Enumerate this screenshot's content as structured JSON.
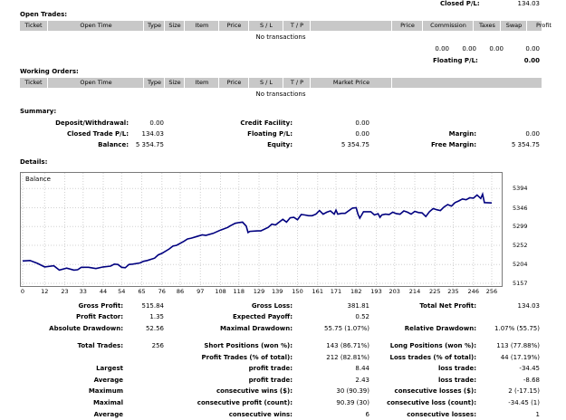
{
  "top": {
    "closed_pl_label": "Closed P/L:",
    "closed_pl_value": "134.03"
  },
  "open_trades": {
    "title": "Open Trades:",
    "columns": [
      "Ticket",
      "Open Time",
      "Type",
      "Size",
      "Item",
      "Price",
      "S / L",
      "T / P",
      "",
      "Price",
      "Commission",
      "Taxes",
      "Swap",
      "Profit"
    ],
    "empty": "No transactions",
    "totals": [
      "0.00",
      "0.00",
      "0.00",
      "0.00"
    ],
    "floating_label": "Floating P/L:",
    "floating_value": "0.00"
  },
  "working_orders": {
    "title": "Working Orders:",
    "columns": [
      "Ticket",
      "Open Time",
      "Type",
      "Size",
      "Item",
      "Price",
      "S / L",
      "T / P",
      "Market Price"
    ],
    "empty": "No transactions"
  },
  "summary": {
    "title": "Summary:",
    "deposit_label": "Deposit/Withdrawal:",
    "deposit_value": "0.00",
    "credit_label": "Credit Facility:",
    "credit_value": "0.00",
    "closed_label": "Closed Trade P/L:",
    "closed_value": "134.03",
    "floating_label": "Floating P/L:",
    "floating_value": "0.00",
    "margin_label": "Margin:",
    "margin_value": "0.00",
    "balance_label": "Balance:",
    "balance_value": "5 354.75",
    "equity_label": "Equity:",
    "equity_value": "5 354.75",
    "free_margin_label": "Free Margin:",
    "free_margin_value": "5 354.75"
  },
  "details": {
    "title": "Details:",
    "stats": [
      [
        "Gross Profit:",
        "515.84",
        "Gross Loss:",
        "381.81",
        "Total Net Profit:",
        "134.03"
      ],
      [
        "Profit Factor:",
        "1.35",
        "Expected Payoff:",
        "0.52",
        "",
        ""
      ],
      [
        "Absolute Drawdown:",
        "52.56",
        "Maximal Drawdown:",
        "55.75 (1.07%)",
        "Relative Drawdown:",
        "1.07% (55.75)"
      ],
      [
        "",
        "",
        "",
        "",
        "",
        ""
      ],
      [
        "Total Trades:",
        "256",
        "Short Positions (won %):",
        "143 (86.71%)",
        "Long Positions (won %):",
        "113 (77.88%)"
      ],
      [
        "",
        "",
        "Profit Trades (% of total):",
        "212 (82.81%)",
        "Loss trades (% of total):",
        "44 (17.19%)"
      ],
      [
        "Largest",
        "",
        "profit trade:",
        "8.44",
        "loss trade:",
        "-34.45"
      ],
      [
        "Average",
        "",
        "profit trade:",
        "2.43",
        "loss trade:",
        "-8.68"
      ],
      [
        "Maximum",
        "",
        "consecutive wins ($):",
        "30 (90.39)",
        "consecutive losses ($):",
        "2 (-17.15)"
      ],
      [
        "Maximal",
        "",
        "consecutive profit (count):",
        "90.39 (30)",
        "consecutive loss (count):",
        "-34.45 (1)"
      ],
      [
        "Average",
        "",
        "consecutive wins:",
        "6",
        "consecutive losses:",
        "1"
      ]
    ]
  },
  "chart_data": {
    "type": "line",
    "title": "Balance",
    "xlabel": "",
    "ylabel": "",
    "x_ticks": [
      "0",
      "12",
      "23",
      "33",
      "44",
      "54",
      "65",
      "76",
      "86",
      "97",
      "108",
      "118",
      "129",
      "139",
      "150",
      "161",
      "171",
      "182",
      "193",
      "203",
      "214",
      "225",
      "235",
      "246",
      "256"
    ],
    "y_ticks": [
      "5394",
      "5346",
      "5299",
      "5252",
      "5204",
      "5157"
    ],
    "xlim": [
      0,
      256
    ],
    "ylim": [
      5157,
      5406
    ],
    "grid": true,
    "line_color": "#00007f",
    "series": [
      {
        "x": [
          0,
          4,
          8,
          12,
          17,
          20,
          24,
          28,
          30,
          32,
          36,
          40,
          44,
          48,
          50,
          52,
          54,
          56,
          58,
          60,
          64,
          66,
          68,
          72,
          74,
          76,
          80,
          82,
          84,
          88,
          90,
          92,
          95,
          98,
          100,
          104,
          108,
          112,
          113,
          116,
          118,
          120,
          122,
          123,
          124,
          128,
          130,
          134,
          136,
          138,
          140,
          142,
          144,
          146,
          148,
          150,
          152,
          154,
          156,
          158,
          160,
          162,
          164,
          166,
          168,
          170,
          171,
          172,
          174,
          176,
          180,
          182,
          183,
          184,
          186,
          188,
          190,
          192,
          194,
          195,
          196,
          198,
          200,
          202,
          204,
          206,
          208,
          210,
          212,
          214,
          216,
          218,
          220,
          222,
          224,
          226,
          228,
          230,
          232,
          234,
          236,
          238,
          240,
          242,
          244,
          246,
          248,
          250,
          251,
          252,
          256
        ],
        "y": [
          5213,
          5214,
          5207,
          5198,
          5201,
          5190,
          5195,
          5190,
          5191,
          5197,
          5197,
          5194,
          5198,
          5200,
          5205,
          5204,
          5197,
          5196,
          5204,
          5205,
          5208,
          5212,
          5214,
          5220,
          5228,
          5232,
          5243,
          5250,
          5252,
          5262,
          5268,
          5270,
          5274,
          5278,
          5277,
          5282,
          5290,
          5297,
          5300,
          5307,
          5309,
          5310,
          5300,
          5284,
          5287,
          5288,
          5288,
          5297,
          5305,
          5303,
          5310,
          5317,
          5310,
          5321,
          5322,
          5316,
          5329,
          5328,
          5326,
          5326,
          5330,
          5339,
          5330,
          5335,
          5338,
          5330,
          5340,
          5330,
          5332,
          5332,
          5345,
          5346,
          5330,
          5320,
          5336,
          5336,
          5336,
          5328,
          5331,
          5322,
          5328,
          5330,
          5329,
          5335,
          5331,
          5330,
          5338,
          5335,
          5330,
          5337,
          5334,
          5333,
          5324,
          5336,
          5344,
          5341,
          5339,
          5348,
          5354,
          5350,
          5359,
          5363,
          5368,
          5366,
          5371,
          5370,
          5378,
          5369,
          5380,
          5359,
          5358
        ]
      }
    ]
  }
}
